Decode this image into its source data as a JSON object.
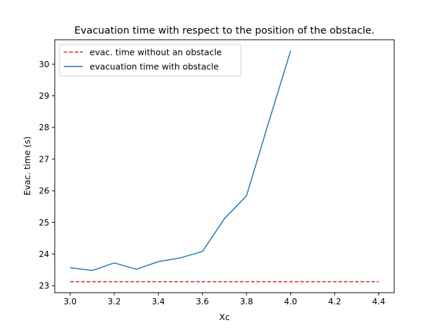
{
  "chart_data": {
    "type": "line",
    "title": "Evacuation time with respect to the position of the obstacle.",
    "xlabel": "Xc",
    "ylabel": "Evac. time (s)",
    "xlim": [
      2.93,
      4.47
    ],
    "ylim": [
      22.78,
      30.77
    ],
    "xticks": [
      3.0,
      3.2,
      3.4,
      3.6,
      3.8,
      4.0,
      4.2,
      4.4
    ],
    "xtick_labels": [
      "3.0",
      "3.2",
      "3.4",
      "3.6",
      "3.8",
      "4.0",
      "4.2",
      "4.4"
    ],
    "yticks": [
      23,
      24,
      25,
      26,
      27,
      28,
      29,
      30
    ],
    "ytick_labels": [
      "23",
      "24",
      "25",
      "26",
      "27",
      "28",
      "29",
      "30"
    ],
    "grid": false,
    "legend": "upper-left",
    "series": [
      {
        "name": "evac. time without an obstacle",
        "style": "dashed",
        "color": "#d62728",
        "x": [
          3.0,
          4.4
        ],
        "y": [
          23.13,
          23.13
        ]
      },
      {
        "name": "evacuation time with obstacle",
        "style": "solid",
        "color": "#1f77b4",
        "x": [
          3.0,
          3.1,
          3.2,
          3.3,
          3.4,
          3.5,
          3.6,
          3.7,
          3.8,
          3.9,
          4.0
        ],
        "y": [
          23.57,
          23.48,
          23.72,
          23.52,
          23.76,
          23.88,
          24.08,
          25.12,
          25.84,
          28.15,
          30.42
        ]
      }
    ]
  }
}
